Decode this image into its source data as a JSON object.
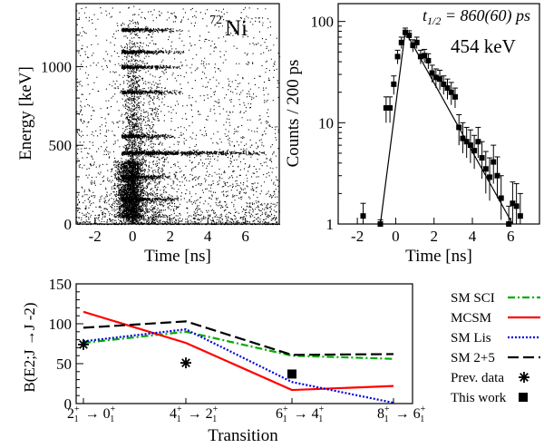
{
  "chart_data": [
    {
      "type": "heatmap",
      "annotation": "Ni",
      "annotation_mass": "72",
      "xlabel": "Time [ns]",
      "ylabel": "Energy [keV]",
      "xlim": [
        -3,
        7.8
      ],
      "ylim": [
        0,
        1400
      ],
      "xticks": [
        -2,
        0,
        2,
        4,
        6
      ],
      "yticks": [
        0,
        500,
        1000
      ],
      "energy_lines_keV": [
        160,
        300,
        454,
        560,
        840,
        1000,
        1095,
        1235
      ],
      "prompt_time_ns": 0
    },
    {
      "type": "scatter",
      "scale": "log-y",
      "title": "t_{1/2} = 860(60) ps",
      "title_main": "t",
      "title_sub": "1/2",
      "title_value": " = 860(60) ps",
      "annotation": "454 keV",
      "xlabel": "Time [ns]",
      "ylabel": "Counts / 200 ps",
      "xlim": [
        -3,
        7.5
      ],
      "ylim": [
        1,
        150
      ],
      "xticks": [
        -2,
        0,
        2,
        4,
        6
      ],
      "yticks": [
        1,
        10,
        100
      ],
      "points": [
        {
          "x": -1.7,
          "y": 1.2,
          "lo": 1.0,
          "hi": 1.6
        },
        {
          "x": -0.8,
          "y": 1.0,
          "lo": 1.0,
          "hi": 1.1
        },
        {
          "x": -0.5,
          "y": 14,
          "lo": 10,
          "hi": 18
        },
        {
          "x": -0.3,
          "y": 14,
          "lo": 10,
          "hi": 18
        },
        {
          "x": -0.1,
          "y": 24,
          "lo": 19,
          "hi": 29
        },
        {
          "x": 0.1,
          "y": 45,
          "lo": 38,
          "hi": 52
        },
        {
          "x": 0.3,
          "y": 62,
          "lo": 54,
          "hi": 70
        },
        {
          "x": 0.5,
          "y": 78,
          "lo": 70,
          "hi": 86
        },
        {
          "x": 0.7,
          "y": 73,
          "lo": 65,
          "hi": 81
        },
        {
          "x": 0.9,
          "y": 58,
          "lo": 50,
          "hi": 66
        },
        {
          "x": 1.1,
          "y": 62,
          "lo": 54,
          "hi": 70
        },
        {
          "x": 1.3,
          "y": 45,
          "lo": 38,
          "hi": 52
        },
        {
          "x": 1.5,
          "y": 46,
          "lo": 39,
          "hi": 53
        },
        {
          "x": 1.7,
          "y": 41,
          "lo": 34,
          "hi": 48
        },
        {
          "x": 1.9,
          "y": 31,
          "lo": 25,
          "hi": 37
        },
        {
          "x": 2.1,
          "y": 28,
          "lo": 22,
          "hi": 34
        },
        {
          "x": 2.3,
          "y": 27,
          "lo": 21,
          "hi": 33
        },
        {
          "x": 2.5,
          "y": 24,
          "lo": 19,
          "hi": 29
        },
        {
          "x": 2.7,
          "y": 22,
          "lo": 17,
          "hi": 27
        },
        {
          "x": 2.9,
          "y": 20,
          "lo": 15,
          "hi": 25
        },
        {
          "x": 3.1,
          "y": 18,
          "lo": 14,
          "hi": 22
        },
        {
          "x": 3.3,
          "y": 9,
          "lo": 6,
          "hi": 12
        },
        {
          "x": 3.5,
          "y": 7,
          "lo": 5,
          "hi": 10
        },
        {
          "x": 3.7,
          "y": 6.5,
          "lo": 4.5,
          "hi": 9
        },
        {
          "x": 3.9,
          "y": 6,
          "lo": 4,
          "hi": 8.5
        },
        {
          "x": 4.1,
          "y": 5.3,
          "lo": 3.5,
          "hi": 7.5
        },
        {
          "x": 4.3,
          "y": 6.5,
          "lo": 4.5,
          "hi": 9
        },
        {
          "x": 4.5,
          "y": 4.5,
          "lo": 2.8,
          "hi": 6.5
        },
        {
          "x": 4.7,
          "y": 3.5,
          "lo": 2,
          "hi": 5.2
        },
        {
          "x": 4.9,
          "y": 2.9,
          "lo": 1.7,
          "hi": 4.5
        },
        {
          "x": 5.1,
          "y": 4.1,
          "lo": 2.5,
          "hi": 6
        },
        {
          "x": 5.3,
          "y": 3,
          "lo": 1.8,
          "hi": 4.6
        },
        {
          "x": 5.5,
          "y": 1.8,
          "lo": 1.1,
          "hi": 3
        },
        {
          "x": 5.9,
          "y": 1.0,
          "lo": 1.0,
          "hi": 1.5
        },
        {
          "x": 6.1,
          "y": 1.6,
          "lo": 1.0,
          "hi": 2.6
        },
        {
          "x": 6.3,
          "y": 1.5,
          "lo": 1.0,
          "hi": 2.5
        },
        {
          "x": 6.5,
          "y": 1.2,
          "lo": 1.0,
          "hi": 2.0
        }
      ],
      "fit": {
        "peak_x": 0.5,
        "peak_y": 80,
        "rise_x0": -0.8,
        "rise_y0": 1,
        "decay_end_x": 6.1,
        "decay_end_y": 1
      }
    },
    {
      "type": "line",
      "ylabel": "B(E2;J →J -2)",
      "xlabel": "Transition",
      "ylim": [
        0,
        150
      ],
      "yticks": [
        0,
        50,
        100,
        150
      ],
      "categories": [
        {
          "label": "2₁⁺ → 0₁⁺",
          "j_from": "2",
          "j_to": "0"
        },
        {
          "label": "4₁⁺ → 2₁⁺",
          "j_from": "4",
          "j_to": "2"
        },
        {
          "label": "6₁⁺ → 4₁⁺",
          "j_from": "6",
          "j_to": "4"
        },
        {
          "label": "8₁⁺ → 6₁⁺",
          "j_from": "8",
          "j_to": "6"
        }
      ],
      "series": [
        {
          "name": "SM SCI",
          "color": "#00aa00",
          "dash": "8,3,2,3",
          "points": [
            [
              0,
              76
            ],
            [
              1,
              90
            ],
            [
              2,
              60
            ],
            [
              3,
              56
            ]
          ]
        },
        {
          "name": "MCSM",
          "color": "#ff0000",
          "dash": "",
          "points": [
            [
              0,
              115
            ],
            [
              1,
              76
            ],
            [
              2,
              17
            ],
            [
              3,
              22
            ]
          ]
        },
        {
          "name": "SM Lis",
          "color": "#0000dd",
          "dash": "2,2",
          "points": [
            [
              0,
              78
            ],
            [
              1,
              93
            ],
            [
              2,
              27
            ],
            [
              3,
              1
            ]
          ]
        },
        {
          "name": "SM 2+5",
          "color": "#000000",
          "dash": "12,5",
          "points": [
            [
              0,
              95
            ],
            [
              1,
              103
            ],
            [
              2,
              61
            ],
            [
              3,
              62
            ]
          ]
        }
      ],
      "markers": [
        {
          "name": "Prev. data",
          "shape": "asterisk",
          "points": [
            [
              0,
              74
            ],
            [
              1,
              51
            ]
          ]
        },
        {
          "name": "This work",
          "shape": "square",
          "points": [
            [
              2,
              37
            ]
          ]
        }
      ],
      "legend_position": "right"
    }
  ]
}
